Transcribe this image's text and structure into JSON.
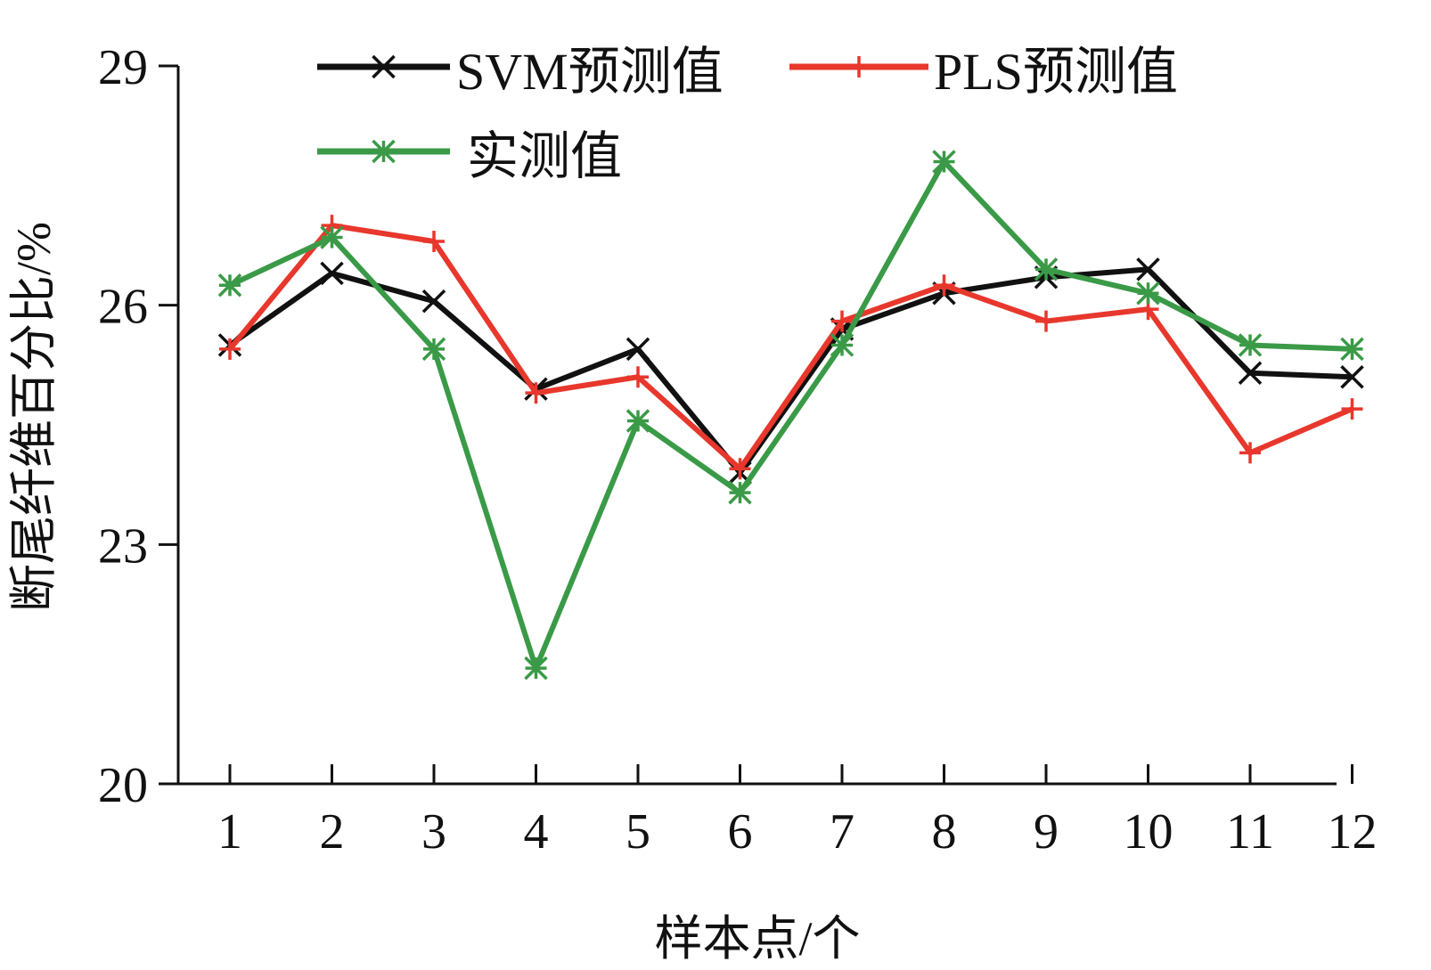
{
  "chart_data": {
    "type": "line",
    "title": "",
    "xlabel": "样本点/个",
    "ylabel": "断尾纤维百分比/%",
    "categories": [
      "1",
      "2",
      "3",
      "4",
      "5",
      "6",
      "7",
      "8",
      "9",
      "10",
      "11",
      "12"
    ],
    "ylim": [
      20,
      29
    ],
    "yticks": [
      "20",
      "23",
      "26",
      "29"
    ],
    "grid": false,
    "legend_position": "top",
    "series": [
      {
        "name": "SVM预测值",
        "color": "#111111",
        "marker": "x",
        "values": [
          25.5,
          26.4,
          26.05,
          24.95,
          25.45,
          23.9,
          25.7,
          26.15,
          26.35,
          26.45,
          25.15,
          25.1
        ]
      },
      {
        "name": "PLS预测值",
        "color": "#e8372c",
        "marker": "plus",
        "values": [
          25.45,
          27.0,
          26.8,
          24.9,
          25.1,
          23.95,
          25.8,
          26.25,
          25.8,
          25.95,
          24.15,
          24.7
        ]
      },
      {
        "name": "实测值",
        "color": "#3a9a47",
        "marker": "star",
        "values": [
          26.25,
          26.85,
          25.45,
          21.45,
          24.55,
          23.65,
          25.5,
          27.8,
          26.45,
          26.15,
          25.5,
          25.45
        ]
      }
    ]
  }
}
